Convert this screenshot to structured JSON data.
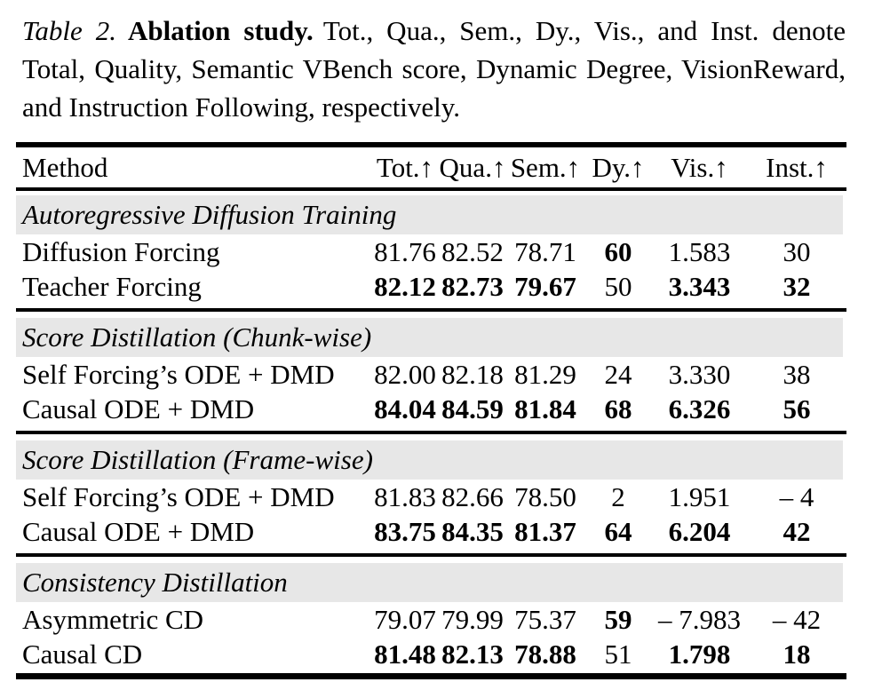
{
  "caption": {
    "label": "Table 2.",
    "title": "Ablation study.",
    "body": "Tot., Qua., Sem., Dy., Vis., and Inst. denote Total, Quality, Semantic VBench score, Dynamic Degree, VisionReward, and Instruction Following, respectively."
  },
  "table": {
    "columns": [
      "Method",
      "Tot.↑",
      "Qua.↑",
      "Sem.↑",
      "Dy.↑",
      "Vis.↑",
      "Inst.↑"
    ],
    "sections": [
      {
        "title": "Autoregressive Diffusion Training",
        "rows": [
          {
            "method": "Diffusion Forcing",
            "values": [
              "81.76",
              "82.52",
              "78.71",
              "60",
              "1.583",
              "30"
            ],
            "bold": [
              false,
              false,
              false,
              true,
              false,
              false
            ]
          },
          {
            "method": "Teacher Forcing",
            "values": [
              "82.12",
              "82.73",
              "79.67",
              "50",
              "3.343",
              "32"
            ],
            "bold": [
              true,
              true,
              true,
              false,
              true,
              true
            ]
          }
        ]
      },
      {
        "title": "Score Distillation (Chunk-wise)",
        "rows": [
          {
            "method": "Self Forcing’s ODE + DMD",
            "values": [
              "82.00",
              "82.18",
              "81.29",
              "24",
              "3.330",
              "38"
            ],
            "bold": [
              false,
              false,
              false,
              false,
              false,
              false
            ]
          },
          {
            "method": "Causal ODE + DMD",
            "values": [
              "84.04",
              "84.59",
              "81.84",
              "68",
              "6.326",
              "56"
            ],
            "bold": [
              true,
              true,
              true,
              true,
              true,
              true
            ]
          }
        ]
      },
      {
        "title": "Score Distillation (Frame-wise)",
        "rows": [
          {
            "method": "Self Forcing’s ODE + DMD",
            "values": [
              "81.83",
              "82.66",
              "78.50",
              "2",
              "1.951",
              "– 4"
            ],
            "bold": [
              false,
              false,
              false,
              false,
              false,
              false
            ]
          },
          {
            "method": "Causal ODE + DMD",
            "values": [
              "83.75",
              "84.35",
              "81.37",
              "64",
              "6.204",
              "42"
            ],
            "bold": [
              true,
              true,
              true,
              true,
              true,
              true
            ]
          }
        ]
      },
      {
        "title": "Consistency Distillation",
        "rows": [
          {
            "method": "Asymmetric CD",
            "values": [
              "79.07",
              "79.99",
              "75.37",
              "59",
              "– 7.983",
              "– 42"
            ],
            "bold": [
              false,
              false,
              false,
              true,
              false,
              false
            ]
          },
          {
            "method": "Causal CD",
            "values": [
              "81.48",
              "82.13",
              "78.88",
              "51",
              "1.798",
              "18"
            ],
            "bold": [
              true,
              true,
              true,
              false,
              true,
              true
            ]
          }
        ]
      }
    ]
  },
  "colors": {
    "background": "#ffffff",
    "text": "#000000",
    "rule": "#000000",
    "section_band": "#e7e7e7"
  }
}
